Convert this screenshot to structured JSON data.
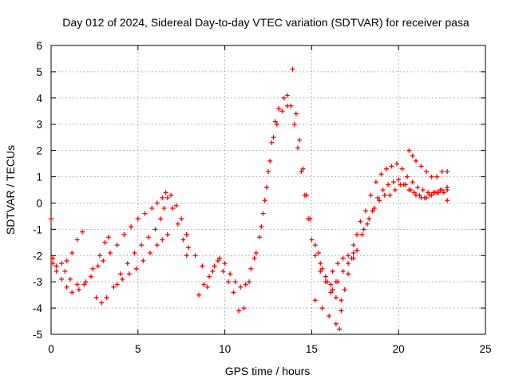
{
  "chart_data": {
    "type": "scatter",
    "title": "Day 012 of 2024, Sidereal Day-to-day VTEC variation (SDTVAR) for receiver pasa",
    "xlabel": "GPS time / hours",
    "ylabel": "SDTVAR / TECUs",
    "xlim": [
      0,
      25
    ],
    "ylim": [
      -5,
      6
    ],
    "xticks": [
      0,
      5,
      10,
      15,
      20,
      25
    ],
    "yticks": [
      -5,
      -4,
      -3,
      -2,
      -1,
      0,
      1,
      2,
      3,
      4,
      5,
      6
    ],
    "grid": true,
    "marker": "+",
    "color": "#ff0000",
    "series": [
      {
        "values": [
          [
            0.0,
            -0.6
          ],
          [
            0.1,
            -2.1
          ],
          [
            0.3,
            -2.4
          ],
          [
            0.6,
            -2.3
          ],
          [
            0.9,
            -2.2
          ],
          [
            1.2,
            -1.9
          ],
          [
            1.5,
            -1.4
          ],
          [
            1.8,
            -1.1
          ]
        ]
      },
      {
        "values": [
          [
            0.1,
            -2.3
          ],
          [
            0.3,
            -2.6
          ],
          [
            0.6,
            -2.9
          ],
          [
            0.9,
            -3.2
          ],
          [
            1.2,
            -3.4
          ],
          [
            1.6,
            -3.3
          ],
          [
            2.0,
            -3.0
          ],
          [
            2.4,
            -2.5
          ],
          [
            2.8,
            -2.0
          ],
          [
            3.1,
            -1.5
          ],
          [
            3.3,
            -1.3
          ]
        ]
      },
      {
        "values": [
          [
            0.8,
            -2.6
          ],
          [
            1.1,
            -2.9
          ],
          [
            1.5,
            -3.1
          ],
          [
            1.9,
            -3.1
          ],
          [
            2.3,
            -2.8
          ],
          [
            2.7,
            -2.4
          ],
          [
            3.0,
            -2.2
          ],
          [
            3.4,
            -1.9
          ],
          [
            3.8,
            -1.6
          ],
          [
            4.2,
            -1.2
          ],
          [
            4.6,
            -0.9
          ],
          [
            5.0,
            -0.6
          ],
          [
            5.4,
            -0.4
          ],
          [
            5.8,
            -0.2
          ],
          [
            6.1,
            0.0
          ],
          [
            6.4,
            0.2
          ],
          [
            6.6,
            0.4
          ],
          [
            6.9,
            0.3
          ],
          [
            7.2,
            -0.1
          ],
          [
            7.5,
            -0.6
          ],
          [
            7.8,
            -1.2
          ],
          [
            7.9,
            -1.7
          ]
        ]
      },
      {
        "values": [
          [
            2.6,
            -3.6
          ],
          [
            2.9,
            -3.8
          ],
          [
            3.2,
            -3.6
          ],
          [
            3.6,
            -3.2
          ],
          [
            4.0,
            -2.7
          ],
          [
            4.4,
            -2.3
          ],
          [
            4.8,
            -1.9
          ],
          [
            5.2,
            -1.6
          ],
          [
            5.6,
            -1.3
          ],
          [
            6.0,
            -1.0
          ],
          [
            6.3,
            -0.6
          ],
          [
            6.5,
            -0.2
          ],
          [
            6.7,
            0.2
          ],
          [
            7.0,
            -0.2
          ],
          [
            7.3,
            -0.8
          ],
          [
            7.6,
            -1.4
          ],
          [
            7.8,
            -2.0
          ]
        ]
      },
      {
        "values": [
          [
            3.8,
            -3.1
          ],
          [
            4.1,
            -2.9
          ],
          [
            4.5,
            -2.7
          ],
          [
            4.9,
            -2.5
          ],
          [
            5.3,
            -2.2
          ],
          [
            5.7,
            -1.9
          ],
          [
            6.1,
            -1.6
          ],
          [
            6.4,
            -1.4
          ],
          [
            6.7,
            -1.2
          ]
        ]
      },
      {
        "values": [
          [
            8.3,
            -2.0
          ],
          [
            8.5,
            -3.5
          ],
          [
            8.8,
            -3.1
          ],
          [
            9.1,
            -2.8
          ],
          [
            9.4,
            -2.4
          ],
          [
            9.7,
            -2.1
          ],
          [
            10.0,
            -2.3
          ],
          [
            10.3,
            -2.7
          ],
          [
            10.6,
            -3.0
          ],
          [
            10.9,
            -3.2
          ],
          [
            11.2,
            -3.1
          ],
          [
            11.5,
            -2.5
          ],
          [
            11.8,
            -1.9
          ],
          [
            12.1,
            -0.9
          ],
          [
            12.3,
            0.1
          ],
          [
            12.5,
            1.2
          ],
          [
            12.7,
            2.3
          ],
          [
            12.9,
            3.1
          ],
          [
            13.1,
            3.6
          ],
          [
            13.4,
            4.0
          ],
          [
            13.6,
            4.1
          ],
          [
            13.8,
            3.7
          ],
          [
            14.0,
            3.0
          ],
          [
            14.2,
            2.1
          ],
          [
            14.4,
            1.2
          ],
          [
            14.6,
            0.3
          ],
          [
            14.8,
            -0.6
          ],
          [
            15.0,
            -1.4
          ],
          [
            15.2,
            -2.0
          ],
          [
            15.5,
            -2.6
          ],
          [
            15.8,
            -3.0
          ],
          [
            16.1,
            -3.1
          ],
          [
            16.4,
            -3.0
          ]
        ]
      },
      {
        "values": [
          [
            8.7,
            -2.4
          ],
          [
            9.0,
            -3.2
          ],
          [
            9.3,
            -2.6
          ],
          [
            9.6,
            -2.2
          ],
          [
            9.9,
            -2.6
          ],
          [
            10.2,
            -3.0
          ],
          [
            10.5,
            -3.4
          ],
          [
            10.8,
            -4.1
          ],
          [
            11.1,
            -4.0
          ],
          [
            11.4,
            -3.0
          ],
          [
            11.7,
            -2.1
          ],
          [
            12.0,
            -1.3
          ],
          [
            12.2,
            -0.4
          ],
          [
            12.4,
            0.6
          ],
          [
            12.6,
            1.6
          ],
          [
            12.8,
            2.5
          ],
          [
            13.0,
            3.0
          ],
          [
            13.3,
            3.5
          ],
          [
            13.6,
            3.7
          ],
          [
            13.9,
            5.1
          ],
          [
            14.1,
            3.4
          ],
          [
            14.3,
            2.4
          ],
          [
            14.5,
            1.3
          ],
          [
            14.7,
            0.3
          ],
          [
            14.9,
            -0.6
          ],
          [
            15.2,
            -1.6
          ],
          [
            15.5,
            -2.3
          ],
          [
            15.8,
            -2.8
          ],
          [
            16.1,
            -3.4
          ],
          [
            16.4,
            -3.6
          ],
          [
            16.7,
            -3.7
          ]
        ]
      },
      {
        "values": [
          [
            15.2,
            -3.7
          ],
          [
            15.6,
            -4.0
          ],
          [
            16.0,
            -4.3
          ],
          [
            16.4,
            -4.6
          ],
          [
            16.6,
            -4.8
          ],
          [
            16.7,
            -4.1
          ],
          [
            16.9,
            -3.3
          ],
          [
            17.1,
            -2.7
          ],
          [
            17.3,
            -2.1
          ],
          [
            17.4,
            -1.6
          ]
        ]
      },
      {
        "values": [
          [
            16.2,
            -2.6
          ],
          [
            16.5,
            -2.3
          ],
          [
            16.8,
            -2.1
          ],
          [
            17.1,
            -2.0
          ],
          [
            17.4,
            -2.1
          ],
          [
            17.6,
            -1.8
          ],
          [
            17.9,
            -1.2
          ],
          [
            18.2,
            -0.8
          ],
          [
            18.5,
            -0.3
          ],
          [
            18.8,
            0.2
          ],
          [
            19.1,
            0.5
          ],
          [
            19.4,
            0.7
          ],
          [
            19.7,
            0.8
          ],
          [
            20.0,
            0.9
          ],
          [
            20.3,
            0.7
          ],
          [
            20.6,
            0.5
          ],
          [
            20.9,
            0.4
          ],
          [
            21.2,
            0.3
          ],
          [
            21.5,
            0.2
          ],
          [
            21.8,
            0.3
          ],
          [
            22.1,
            0.4
          ],
          [
            22.4,
            0.5
          ],
          [
            22.8,
            0.5
          ]
        ]
      },
      {
        "values": [
          [
            17.8,
            -0.7
          ],
          [
            18.1,
            -0.3
          ],
          [
            18.4,
            0.3
          ],
          [
            18.7,
            0.8
          ],
          [
            19.0,
            1.1
          ],
          [
            19.3,
            1.3
          ],
          [
            19.6,
            1.4
          ],
          [
            19.9,
            1.5
          ],
          [
            20.2,
            1.3
          ],
          [
            20.5,
            1.0
          ],
          [
            20.8,
            0.8
          ],
          [
            21.1,
            0.6
          ],
          [
            21.4,
            0.5
          ],
          [
            21.7,
            0.4
          ],
          [
            22.0,
            0.4
          ],
          [
            22.3,
            0.4
          ],
          [
            22.6,
            0.4
          ],
          [
            22.8,
            0.1
          ]
        ]
      },
      {
        "values": [
          [
            18.0,
            -1.0
          ],
          [
            18.3,
            -0.6
          ],
          [
            18.6,
            -0.2
          ],
          [
            18.9,
            0.1
          ],
          [
            19.2,
            0.3
          ],
          [
            19.5,
            0.3
          ],
          [
            19.8,
            0.5
          ],
          [
            20.1,
            0.7
          ],
          [
            20.4,
            0.7
          ],
          [
            20.7,
            0.5
          ],
          [
            21.0,
            0.3
          ],
          [
            21.3,
            0.2
          ],
          [
            21.6,
            0.2
          ],
          [
            21.9,
            0.3
          ],
          [
            22.2,
            0.4
          ],
          [
            22.5,
            0.5
          ],
          [
            22.8,
            0.6
          ]
        ]
      },
      {
        "values": [
          [
            20.6,
            2.0
          ],
          [
            20.8,
            1.8
          ],
          [
            21.0,
            1.6
          ],
          [
            21.3,
            1.4
          ],
          [
            21.6,
            1.2
          ],
          [
            21.9,
            1.0
          ],
          [
            22.2,
            1.0
          ],
          [
            22.5,
            1.2
          ],
          [
            22.8,
            1.2
          ]
        ]
      },
      {
        "values": [
          [
            15.4,
            -1.9
          ],
          [
            15.6,
            -2.5
          ],
          [
            15.9,
            -3.0
          ],
          [
            16.2,
            -3.3
          ],
          [
            16.5,
            -3.0
          ],
          [
            16.8,
            -2.6
          ],
          [
            17.1,
            -2.3
          ],
          [
            17.4,
            -1.9
          ],
          [
            17.6,
            -1.2
          ]
        ]
      }
    ]
  }
}
